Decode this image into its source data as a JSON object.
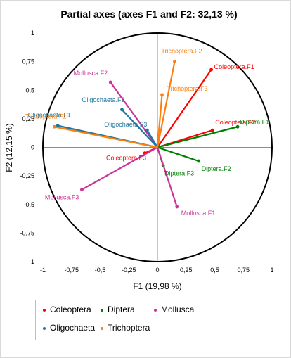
{
  "chart_data": {
    "type": "scatter",
    "title": "Partial axes (axes F1 and F2: 32,13 %)",
    "xlabel": "F1 (19,98 %)",
    "ylabel": "F2 (12,15 %)",
    "xlim": [
      -1,
      1
    ],
    "ylim": [
      -1,
      1
    ],
    "x_ticks": [
      "-1",
      "-0,75",
      "-0,5",
      "-0,25",
      "0",
      "0,25",
      "0,5",
      "0,75",
      "1"
    ],
    "y_ticks": [
      "1",
      "0,75",
      "0,5",
      "0,25",
      "0",
      "-0,25",
      "-0,5",
      "-0,75",
      "-1"
    ],
    "unit_circle": true,
    "series": [
      {
        "name": "Coleoptera",
        "color": "#ff0000",
        "points": [
          {
            "label": "Coleoptera.F1",
            "x": 0.47,
            "y": 0.68
          },
          {
            "label": "Coleoptera.F2",
            "x": 0.48,
            "y": 0.15
          },
          {
            "label": "Coleoptera.F3",
            "x": -0.11,
            "y": -0.05
          }
        ]
      },
      {
        "name": "Diptera",
        "color": "#008000",
        "points": [
          {
            "label": "Diptera.F1",
            "x": 0.7,
            "y": 0.18
          },
          {
            "label": "Diptera.F2",
            "x": 0.36,
            "y": -0.12
          },
          {
            "label": "Diptera.F3",
            "x": 0.05,
            "y": -0.16
          }
        ]
      },
      {
        "name": "Mollusca",
        "color": "#cc3399",
        "points": [
          {
            "label": "Mollusca.F1",
            "x": 0.17,
            "y": -0.52
          },
          {
            "label": "Mollusca.F2",
            "x": -0.41,
            "y": 0.57
          },
          {
            "label": "Mollusca.F3",
            "x": -0.66,
            "y": -0.37
          }
        ]
      },
      {
        "name": "Oligochaeta",
        "color": "#1f77a0",
        "points": [
          {
            "label": "Oligochaeta.F1",
            "x": -0.87,
            "y": 0.19
          },
          {
            "label": "Oligochaeta.F2",
            "x": -0.31,
            "y": 0.33
          },
          {
            "label": "Oligochaeta.F3",
            "x": -0.09,
            "y": 0.15
          }
        ]
      },
      {
        "name": "Trichoptera",
        "color": "#ff7f0e",
        "points": [
          {
            "label": "Trichoptera.F1",
            "x": -0.9,
            "y": 0.18
          },
          {
            "label": "Trichoptera.F2",
            "x": 0.15,
            "y": 0.75
          },
          {
            "label": "Trichoptera.F3",
            "x": 0.04,
            "y": 0.46
          }
        ]
      }
    ],
    "legend": {
      "position": "bottom-left",
      "entries": [
        "Coleoptera",
        "Diptera",
        "Mollusca",
        "Oligochaeta",
        "Trichoptera"
      ]
    }
  }
}
